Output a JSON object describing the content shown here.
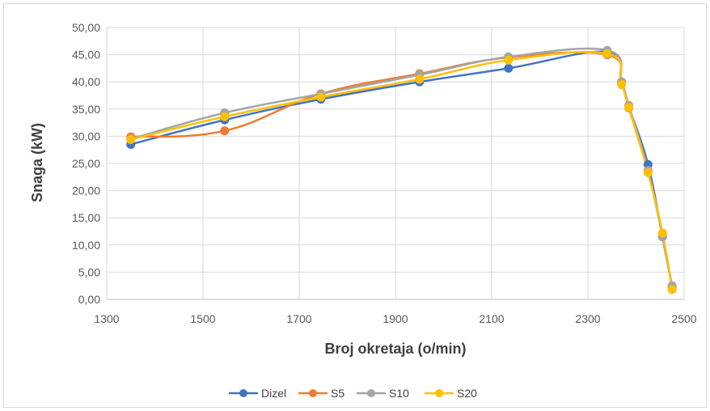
{
  "chart_data": {
    "type": "line",
    "title": "",
    "xlabel": "Broj okretaja (o/min)",
    "ylabel": "Snaga (kW)",
    "xlim": [
      1300,
      2500
    ],
    "ylim": [
      0,
      50
    ],
    "x_ticks": [
      "1300",
      "1500",
      "1700",
      "1900",
      "2100",
      "2300",
      "2500"
    ],
    "y_ticks": [
      "0,00",
      "5,00",
      "10,00",
      "15,00",
      "20,00",
      "25,00",
      "30,00",
      "35,00",
      "40,00",
      "45,00",
      "50,00"
    ],
    "grid": true,
    "legend_position": "bottom",
    "series": [
      {
        "name": "Dizel",
        "color": "#4472c4",
        "x": [
          1350,
          1545,
          1745,
          1950,
          2135,
          2340,
          2370,
          2385,
          2425,
          2455,
          2475
        ],
        "values": [
          28.5,
          33.0,
          36.8,
          40.0,
          42.5,
          45.5,
          40.0,
          35.5,
          24.8,
          11.5,
          2.3
        ]
      },
      {
        "name": "S5",
        "color": "#ed7d31",
        "x": [
          1350,
          1545,
          1745,
          1950,
          2135,
          2340,
          2370,
          2385,
          2425,
          2455,
          2475
        ],
        "values": [
          29.9,
          31.0,
          37.8,
          41.5,
          44.5,
          45.0,
          39.7,
          35.2,
          23.5,
          12.0,
          2.0
        ]
      },
      {
        "name": "S10",
        "color": "#a5a5a5",
        "x": [
          1350,
          1545,
          1745,
          1950,
          2135,
          2340,
          2370,
          2385,
          2425,
          2455,
          2475
        ],
        "values": [
          29.5,
          34.3,
          37.8,
          41.3,
          44.6,
          45.8,
          40.0,
          35.7,
          23.7,
          11.5,
          2.5
        ]
      },
      {
        "name": "S20",
        "color": "#ffc000",
        "x": [
          1350,
          1545,
          1745,
          1950,
          2135,
          2340,
          2370,
          2385,
          2425,
          2455,
          2475
        ],
        "values": [
          29.4,
          33.6,
          37.2,
          40.5,
          44.0,
          45.2,
          39.5,
          35.3,
          23.3,
          12.2,
          1.8
        ]
      }
    ]
  }
}
